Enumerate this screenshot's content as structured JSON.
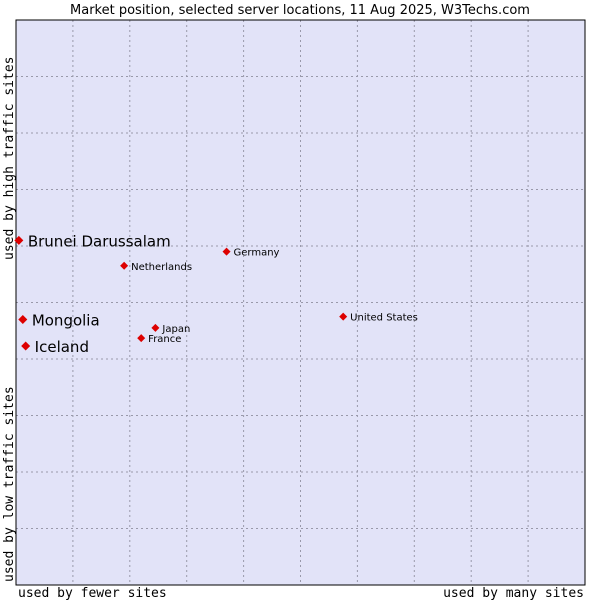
{
  "chart_data": {
    "type": "scatter",
    "title": "Market position, selected server locations, 11 Aug 2025, W3Techs.com",
    "xlabel_left": "used by fewer sites",
    "xlabel_right": "used by many sites",
    "ylabel_bottom": "used by low traffic sites",
    "ylabel_top": "used by high traffic sites",
    "grid": true,
    "xlim": [
      0,
      10
    ],
    "ylim": [
      0,
      10
    ],
    "points": [
      {
        "label": "Brunei Darussalam",
        "x": 0.05,
        "y": 6.1,
        "size": "big"
      },
      {
        "label": "Germany",
        "x": 3.7,
        "y": 5.9,
        "size": "small"
      },
      {
        "label": "Netherlands",
        "x": 1.9,
        "y": 5.65,
        "size": "small"
      },
      {
        "label": "Mongolia",
        "x": 0.12,
        "y": 4.7,
        "size": "big"
      },
      {
        "label": "United States",
        "x": 5.75,
        "y": 4.75,
        "size": "small"
      },
      {
        "label": "Japan",
        "x": 2.45,
        "y": 4.55,
        "size": "small"
      },
      {
        "label": "France",
        "x": 2.2,
        "y": 4.37,
        "size": "small"
      },
      {
        "label": "Iceland",
        "x": 0.17,
        "y": 4.23,
        "size": "big"
      }
    ]
  },
  "colors": {
    "plot_background": "#e2e3f8",
    "grid": "#9999aa",
    "marker": "#dd0000",
    "border": "#000000"
  }
}
